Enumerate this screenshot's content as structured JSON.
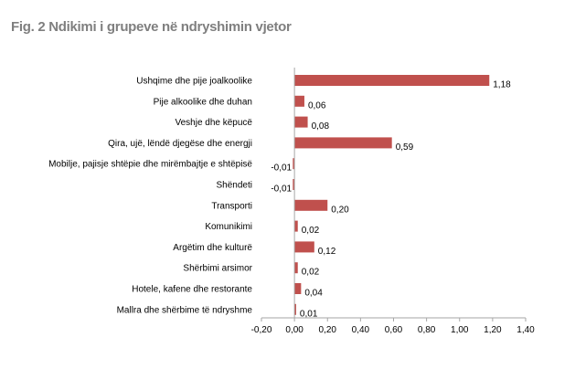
{
  "title": "Fig. 2 Ndikimi i grupeve në ndryshimin vjetor",
  "colors": {
    "bar": "#c0504d",
    "axis": "#a6a6a6",
    "title": "#7f7f7f"
  },
  "chart_data": {
    "type": "bar",
    "orientation": "horizontal",
    "title": "Fig. 2 Ndikimi i grupeve në ndryshimin vjetor",
    "xlabel": "",
    "ylabel": "",
    "grid": false,
    "xlim": [
      -0.2,
      1.4
    ],
    "xticks": [
      -0.2,
      0.0,
      0.2,
      0.4,
      0.6,
      0.8,
      1.0,
      1.2,
      1.4
    ],
    "xtick_labels": [
      "-0,20",
      "0,00",
      "0,20",
      "0,40",
      "0,60",
      "0,80",
      "1,00",
      "1,20",
      "1,40"
    ],
    "categories": [
      "Ushqime dhe pije joalkoolike",
      "Pije alkoolike dhe duhan",
      "Veshje dhe këpucë",
      "Qira, ujë, lëndë djegëse dhe energji",
      "Mobilje, pajisje shtëpie dhe mirëmbajtje e shtëpisë",
      "Shëndeti",
      "Transporti",
      "Komunikimi",
      "Argëtim dhe kulturë",
      "Shërbimi arsimor",
      "Hotele, kafene dhe restorante",
      "Mallra dhe shërbime të ndryshme"
    ],
    "values": [
      1.18,
      0.06,
      0.08,
      0.59,
      -0.01,
      -0.01,
      0.2,
      0.02,
      0.12,
      0.02,
      0.04,
      0.01
    ],
    "value_labels": [
      "1,18",
      "0,06",
      "0,08",
      "0,59",
      "-0,01",
      "-0,01",
      "0,20",
      "0,02",
      "0,12",
      "0,02",
      "0,04",
      "0,01"
    ]
  }
}
